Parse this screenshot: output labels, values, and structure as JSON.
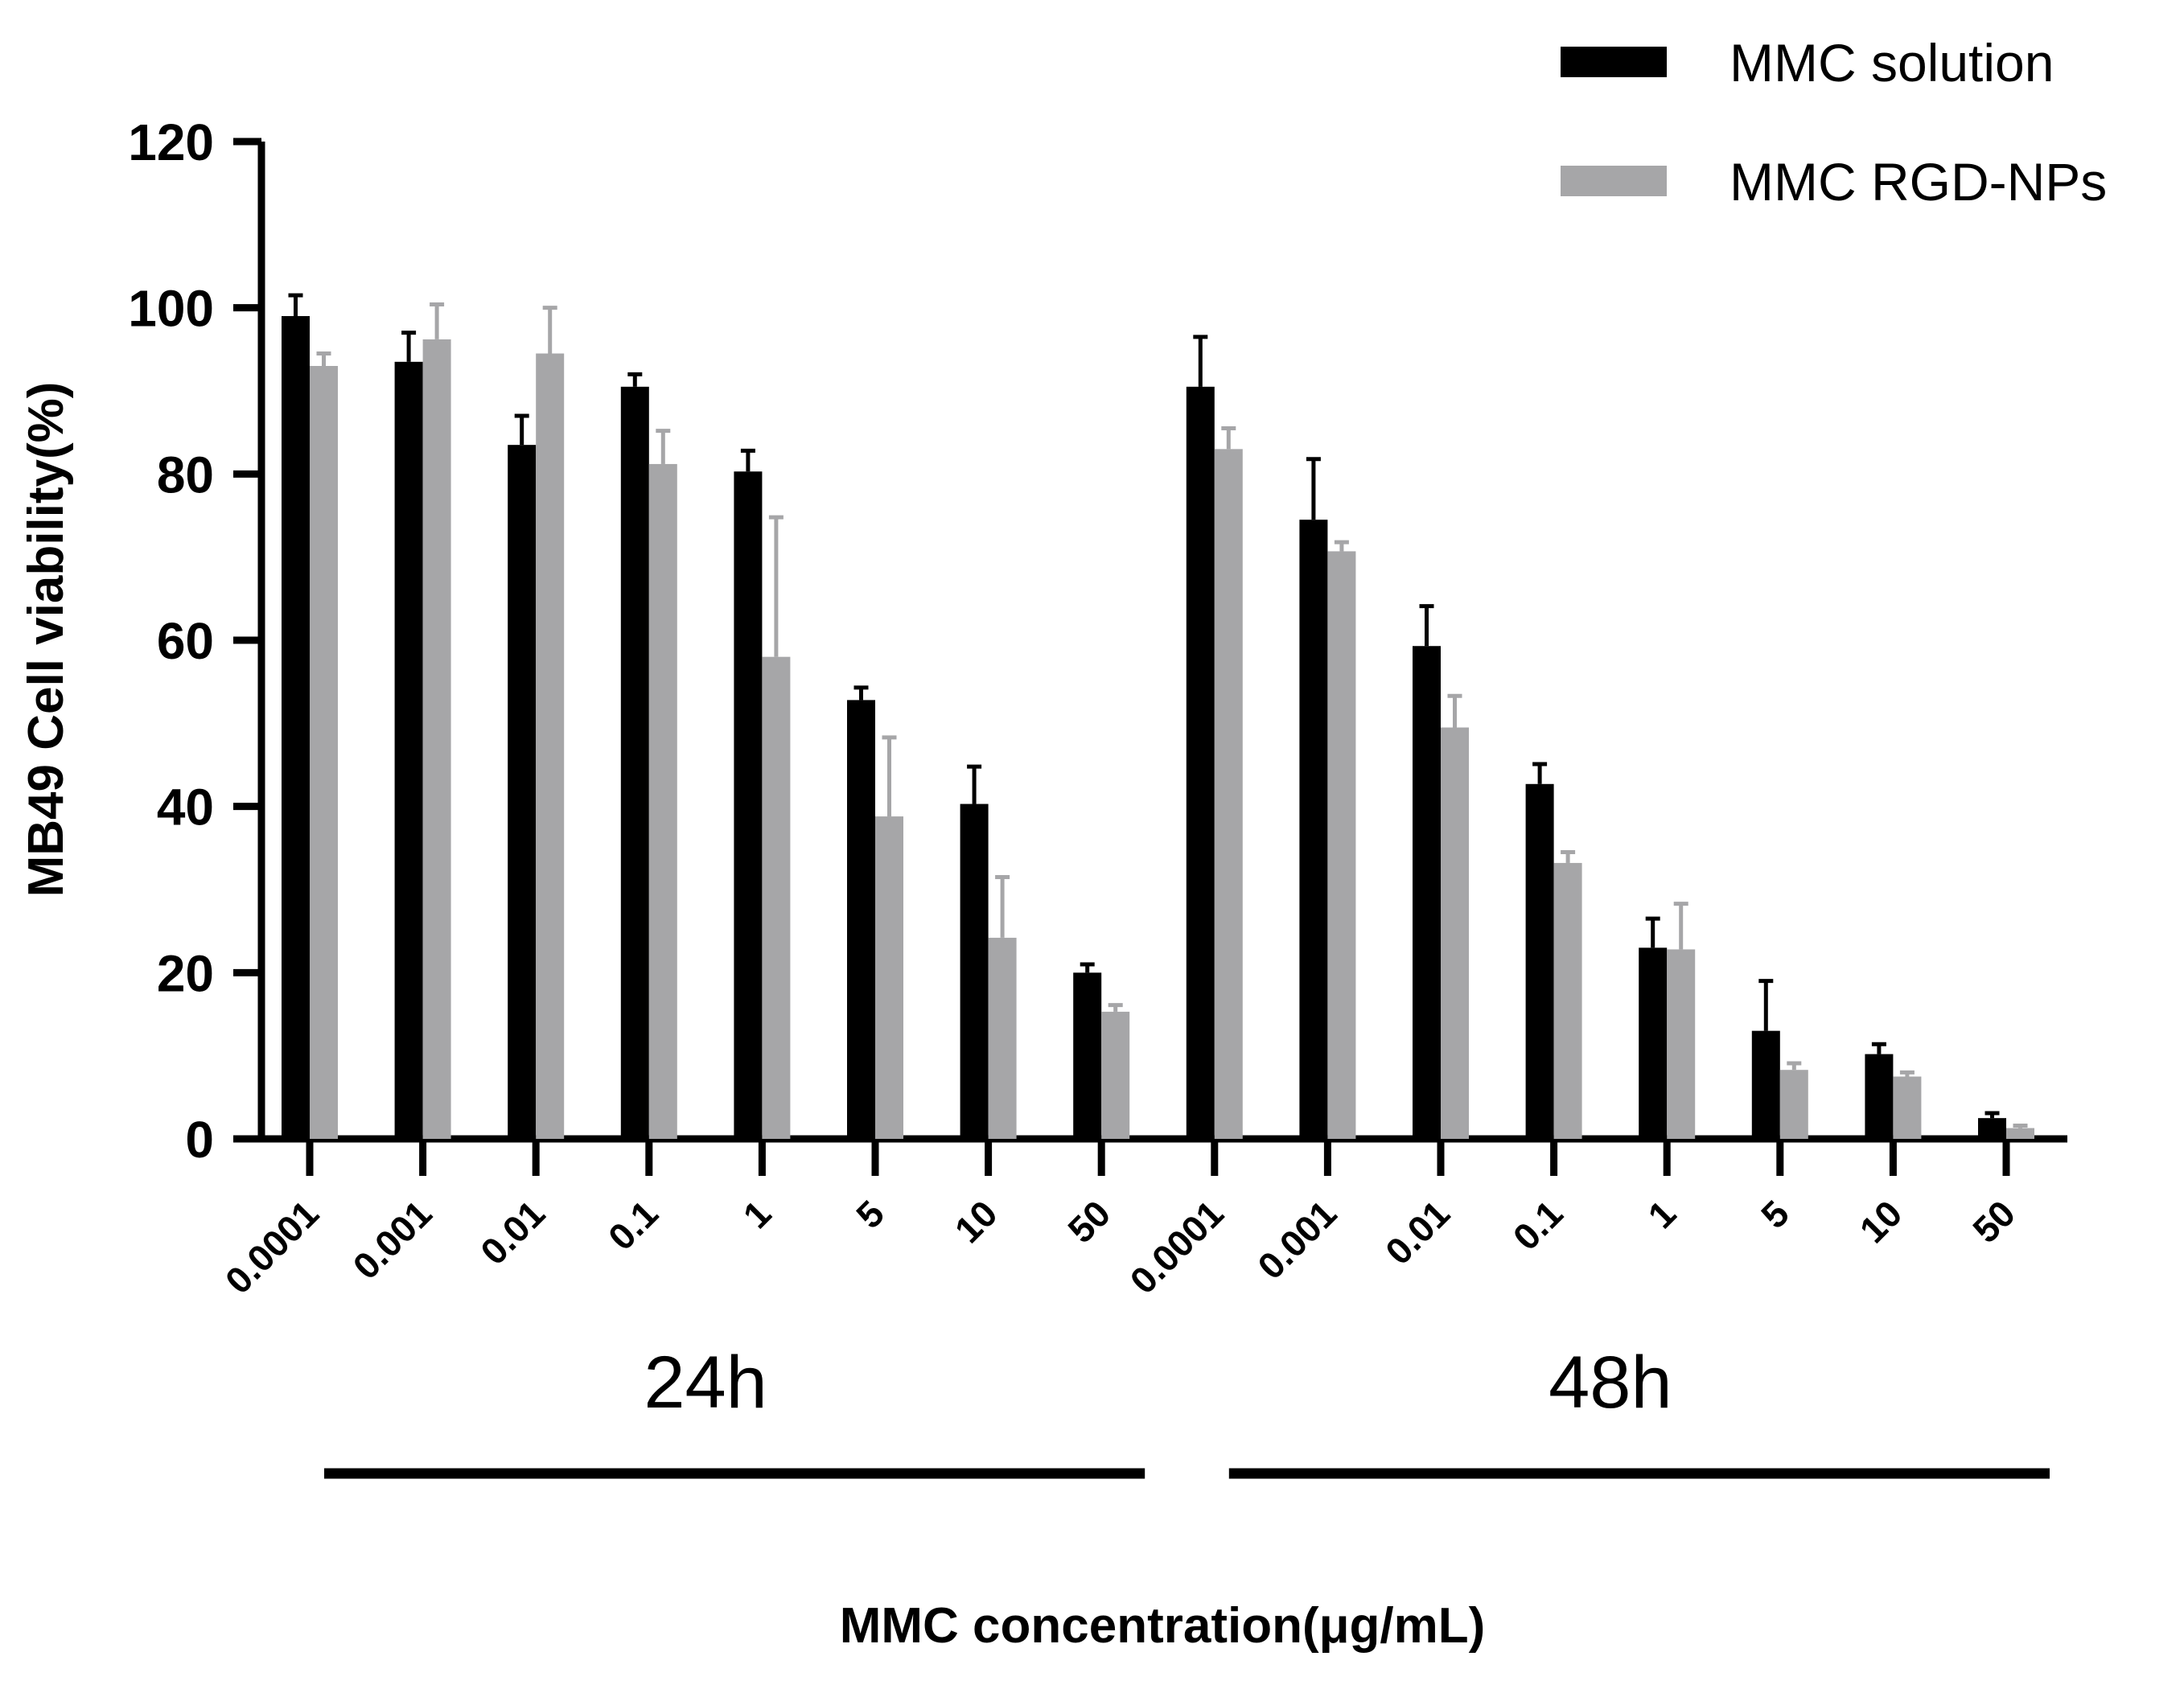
{
  "chart_data": {
    "type": "bar",
    "xlabel": "MMC concentration(μg/mL)",
    "ylabel": "MB49 Cell viability(%)",
    "ylim": [
      0,
      120
    ],
    "yticks": [
      0,
      20,
      40,
      60,
      80,
      100,
      120
    ],
    "categories": [
      "0.0001",
      "0.001",
      "0.01",
      "0.1",
      "1",
      "5",
      "10",
      "50",
      "0.0001",
      "0.001",
      "0.01",
      "0.1",
      "1",
      "5",
      "10",
      "50"
    ],
    "groups": [
      {
        "label": "24h",
        "count": 8
      },
      {
        "label": "48h",
        "count": 8
      }
    ],
    "series": [
      {
        "name": "MMC solution",
        "color": "#000000",
        "values": [
          99,
          93.5,
          83.5,
          90.5,
          80.3,
          52.8,
          40.3,
          20,
          90.5,
          74.5,
          59.3,
          42.7,
          23,
          13,
          10.2,
          2.5
        ],
        "errors": [
          2.5,
          3.5,
          3.5,
          1.5,
          2.5,
          1.5,
          4.5,
          1,
          6,
          7.3,
          4.8,
          2.4,
          3.5,
          6,
          1.2,
          0.6
        ]
      },
      {
        "name": "MMC RGD-NPs",
        "color": "#a6a6a8",
        "values": [
          93,
          96.2,
          94.5,
          81.2,
          58,
          38.8,
          24.2,
          15.3,
          83,
          70.7,
          49.5,
          33.2,
          22.8,
          8.3,
          7.5,
          1.3
        ],
        "errors": [
          1.5,
          4.2,
          5.5,
          4,
          16.8,
          9.5,
          7.3,
          0.8,
          2.5,
          1.1,
          3.8,
          1.3,
          5.5,
          0.8,
          0.5,
          0.3
        ]
      }
    ]
  }
}
